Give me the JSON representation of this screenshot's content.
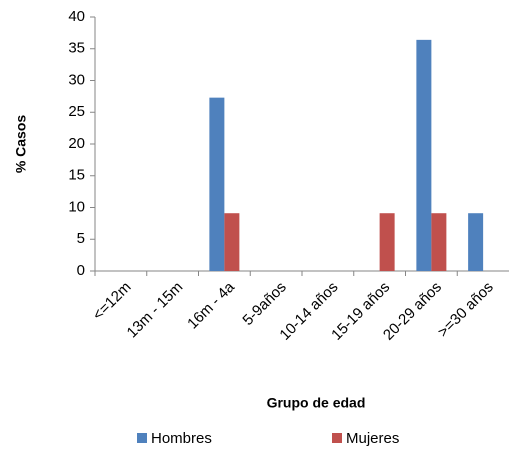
{
  "chart_data": {
    "type": "bar",
    "y_label": "% Casos",
    "x_label": "Grupo de edad",
    "categories": [
      "<=12m",
      "13m - 15m",
      "16m - 4a",
      "5-9años",
      "10-14 años",
      "15-19 años",
      "20-29 años",
      ">=30 años"
    ],
    "series": [
      {
        "name": "Hombres",
        "color": "#4f81bd",
        "values": [
          0,
          0,
          27.3,
          0,
          0,
          0,
          36.4,
          9.1
        ]
      },
      {
        "name": "Mujeres",
        "color": "#c0504d",
        "values": [
          0,
          0,
          9.1,
          0,
          0,
          9.1,
          9.1,
          0
        ]
      }
    ],
    "ylim": [
      0,
      40
    ],
    "yticks": [
      0,
      5,
      10,
      15,
      20,
      25,
      30,
      35,
      40
    ],
    "grid": false,
    "legend": "bottom"
  }
}
